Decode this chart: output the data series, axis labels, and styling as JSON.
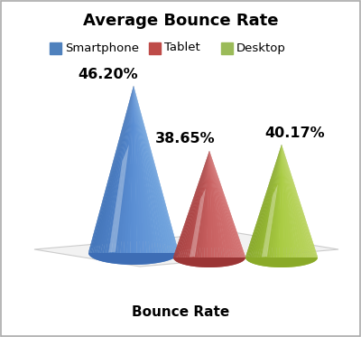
{
  "title": "Average Bounce Rate",
  "xlabel": "Bounce Rate",
  "categories": [
    "Smartphone",
    "Tablet",
    "Desktop"
  ],
  "values": [
    46.2,
    38.65,
    40.17
  ],
  "labels": [
    "46.20%",
    "38.65%",
    "40.17%"
  ],
  "cone_colors": {
    "smartphone": {
      "main": "#5B8FD4",
      "dark": "#3A6BAF",
      "light": "#8BBCE8",
      "base": "#3D6DB5"
    },
    "tablet": {
      "main": "#C86060",
      "dark": "#9B3535",
      "light": "#E08888",
      "base": "#9B3535"
    },
    "desktop": {
      "main": "#AACC44",
      "dark": "#7A9A20",
      "light": "#CCDD80",
      "base": "#8AAA28"
    }
  },
  "legend_colors": [
    "#4F81BD",
    "#BE4B48",
    "#9BBB59"
  ],
  "background": "#FFFFFF",
  "title_fontsize": 13,
  "label_fontsize": 11,
  "axis_label_fontsize": 11,
  "floor_color": "#F2F2F2",
  "floor_edge": "#CCCCCC"
}
